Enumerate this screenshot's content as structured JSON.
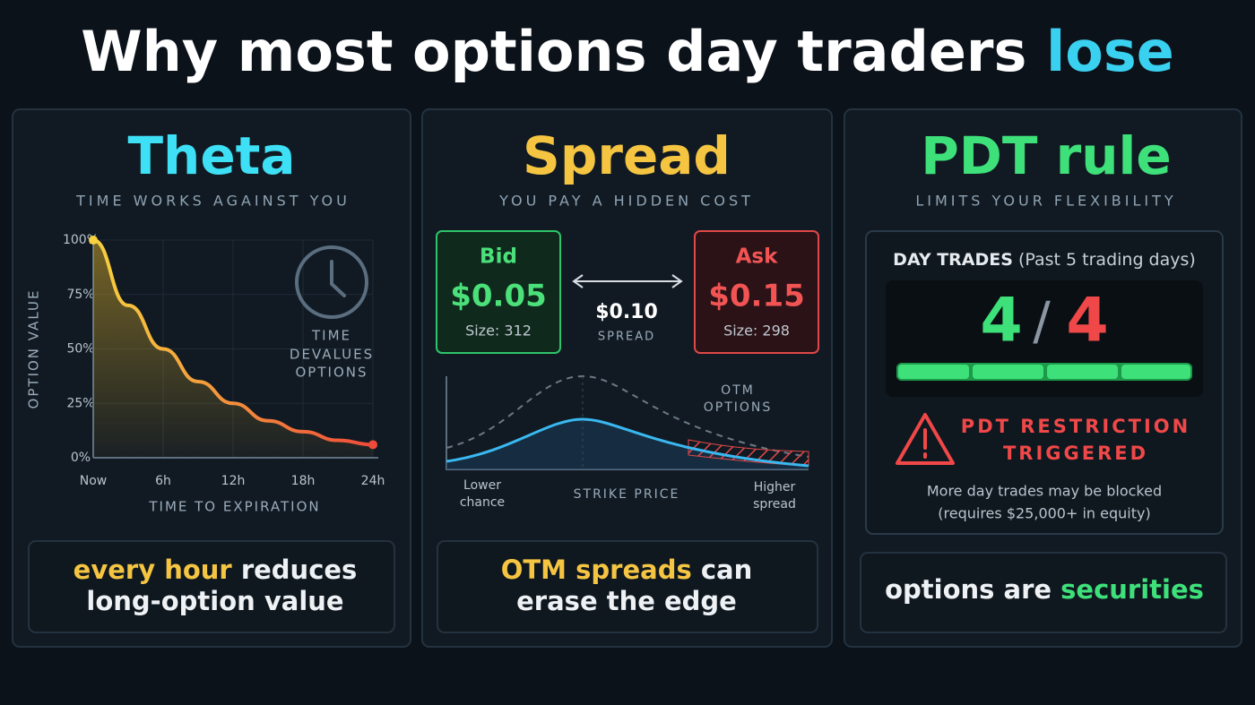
{
  "title": {
    "text": "Why most options day traders",
    "highlight": "lose"
  },
  "theta": {
    "heading": "Theta",
    "subheading": "TIME WORKS AGAINST YOU",
    "annotation": [
      "TIME",
      "DEVALUES",
      "OPTIONS"
    ],
    "takeaway": {
      "highlight": "every hour",
      "rest": "reduces",
      "line2": "long-option value"
    }
  },
  "chart_data": {
    "type": "line",
    "y_label": "OPTION VALUE",
    "x_label": "TIME TO EXPIRATION",
    "x": [
      0,
      3,
      6,
      9,
      12,
      15,
      18,
      21,
      24
    ],
    "values": [
      100,
      70,
      50,
      35,
      25,
      17,
      12,
      8,
      6
    ],
    "color": "#f7d23e",
    "xlim": [
      0,
      24
    ],
    "ylim": [
      0,
      100
    ],
    "xticks": [
      {
        "value": 0,
        "label": "Now"
      },
      {
        "value": 6,
        "label": "6h"
      },
      {
        "value": 12,
        "label": "12h"
      },
      {
        "value": 18,
        "label": "18h"
      },
      {
        "value": 24,
        "label": "24h"
      }
    ],
    "yticks": [
      {
        "value": 0,
        "label": "0%"
      },
      {
        "value": 25,
        "label": "25%"
      },
      {
        "value": 50,
        "label": "50%"
      },
      {
        "value": 75,
        "label": "75%"
      },
      {
        "value": 100,
        "label": "100%"
      }
    ],
    "grid": true
  },
  "spread": {
    "heading": "Spread",
    "subheading": "YOU PAY A HIDDEN COST",
    "bid": {
      "label": "Bid",
      "price": "$0.05",
      "size": "Size: 312"
    },
    "ask": {
      "label": "Ask",
      "price": "$0.15",
      "size": "Size: 298"
    },
    "gap": {
      "value": "$0.10",
      "label": "SPREAD"
    },
    "diagram": {
      "otm": [
        "OTM",
        "OPTIONS"
      ],
      "left": [
        "Lower",
        "chance"
      ],
      "center": "STRIKE PRICE",
      "right": [
        "Higher",
        "spread"
      ]
    },
    "takeaway": {
      "highlight": "OTM spreads",
      "rest": "can",
      "line2": "erase the edge"
    }
  },
  "pdt": {
    "heading": "PDT rule",
    "subheading": "LIMITS YOUR FLEXIBILITY",
    "counter": {
      "label": "DAY TRADES",
      "qualifier": "(Past 5 trading days)",
      "used": "4",
      "separator": "/",
      "limit": "4"
    },
    "warning": [
      "PDT RESTRICTION",
      "TRIGGERED"
    ],
    "note": [
      "More day trades may be blocked",
      "(requires $25,000+ in equity)"
    ],
    "takeaway": {
      "lead": "options are",
      "highlight": "securities"
    }
  }
}
